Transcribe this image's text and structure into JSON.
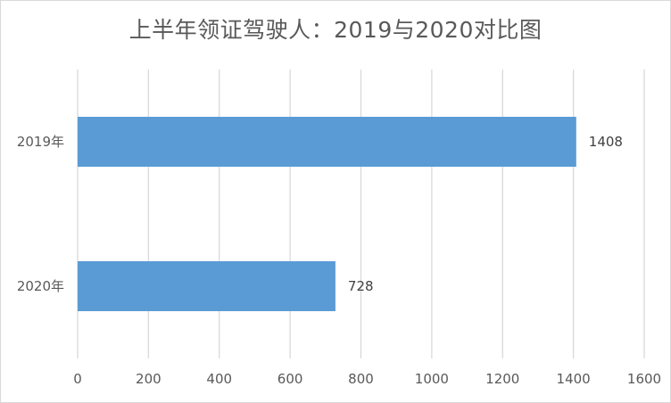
{
  "chart_data": {
    "type": "bar",
    "orientation": "horizontal",
    "title": "上半年领证驾驶人：2019与2020对比图",
    "categories": [
      "2019年",
      "2020年"
    ],
    "values": [
      1408,
      728
    ],
    "data_labels": [
      "1408",
      "728"
    ],
    "xlim": [
      0,
      1600
    ],
    "x_ticks": [
      "0",
      "200",
      "400",
      "600",
      "800",
      "1000",
      "1200",
      "1400",
      "1600"
    ],
    "grid": true,
    "legend": "none",
    "colors": {
      "bar": "#5b9bd5",
      "grid": "#d9d9d9",
      "text": "#595959"
    }
  }
}
